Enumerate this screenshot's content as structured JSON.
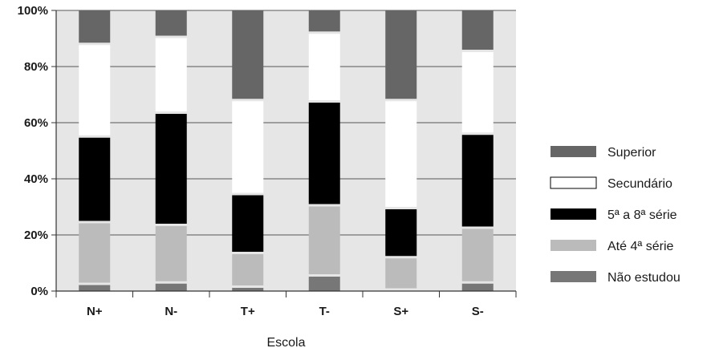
{
  "chart_data": {
    "type": "bar",
    "stacked": true,
    "percent": true,
    "categories": [
      "N+",
      "N-",
      "T+",
      "T-",
      "S+",
      "S-"
    ],
    "xlabel": "Escola",
    "ylabel": "",
    "ylim": [
      0,
      100
    ],
    "yticks": [
      "0%",
      "20%",
      "40%",
      "60%",
      "80%",
      "100%"
    ],
    "grid": true,
    "legend_position": "right",
    "series": [
      {
        "name": "Não estudou",
        "color": "#777777",
        "values": [
          3,
          3.5,
          2,
          6,
          1,
          3.5
        ]
      },
      {
        "name": "Até 4ª série",
        "color": "#bbbbbb",
        "values": [
          22,
          20.5,
          12,
          25,
          11.5,
          19.5
        ]
      },
      {
        "name": "5ª a 8ª série",
        "color": "#000000",
        "values": [
          30.5,
          40,
          21,
          37,
          17.5,
          33.5
        ]
      },
      {
        "name": "Secundário",
        "color": "#ffffff",
        "values": [
          33,
          27,
          33.5,
          24.5,
          38.5,
          29.5
        ]
      },
      {
        "name": "Superior",
        "color": "#666666",
        "values": [
          11.5,
          9,
          31.5,
          7.5,
          31.5,
          14
        ]
      }
    ],
    "legend_order": [
      "Superior",
      "Secundário",
      "5ª a 8ª série",
      "Até 4ª série",
      "Não estudou"
    ]
  }
}
